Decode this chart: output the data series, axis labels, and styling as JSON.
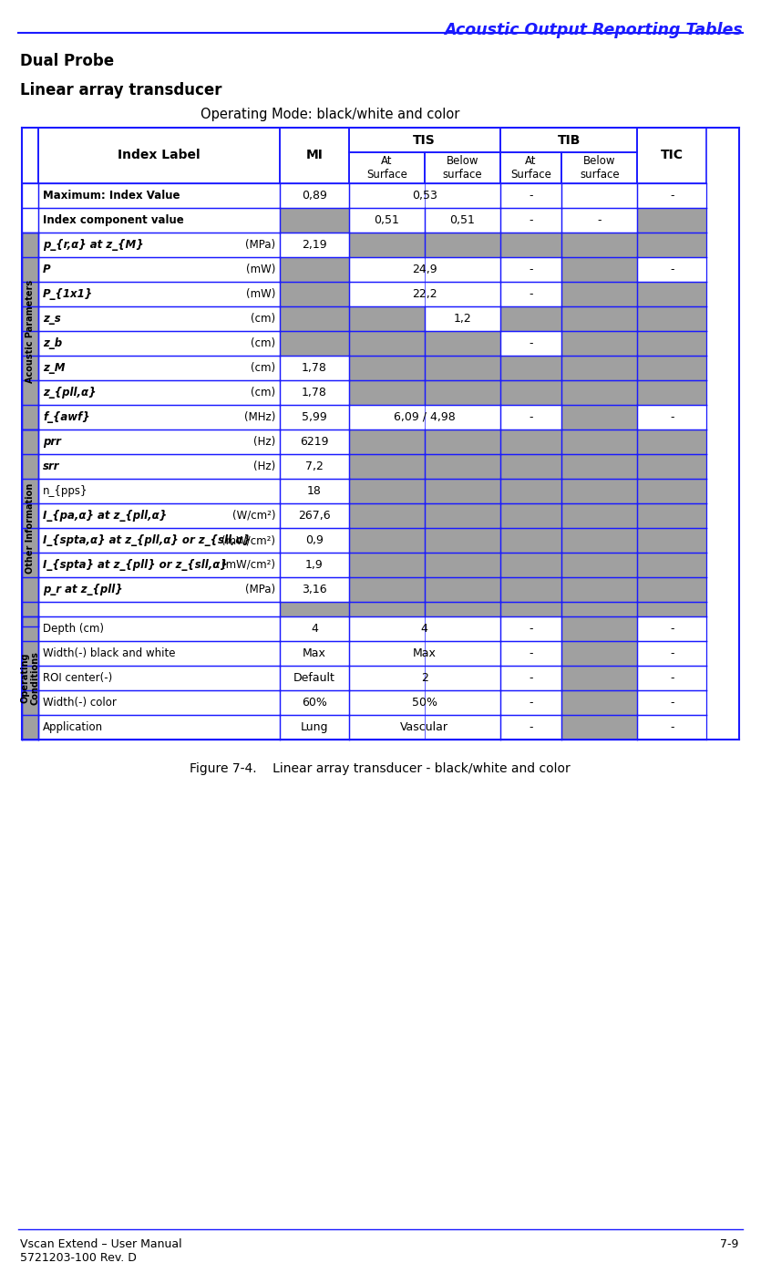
{
  "page_header": "Acoustic Output Reporting Tables",
  "section_title1": "Dual Probe",
  "section_title2": "Linear array transducer",
  "operating_mode": "Operating Mode: black/white and color",
  "figure_caption": "Figure 7-4.    Linear array transducer - black/white and color",
  "footer_left": "Vscan Extend – User Manual\n5721203-100 Rev. D",
  "footer_right": "7-9",
  "gray_color": "#a0a0a0",
  "blue_border": "#1a1aff",
  "rows": [
    {
      "label": "Maximum: Index Value",
      "unit": "",
      "section": "",
      "mi": "0,89",
      "tis_at": "0,53",
      "tis_below": "",
      "tib_at": "-",
      "tib_below": "",
      "tic": "-",
      "mi_gray": false,
      "tis_at_gray": false,
      "tis_below_gray": false,
      "tib_at_gray": false,
      "tib_below_gray": false,
      "tic_gray": false,
      "merged_tis": true,
      "merged_tib": false,
      "label_bold": true
    },
    {
      "label": "Index component value",
      "unit": "",
      "section": "",
      "mi": "",
      "tis_at": "0,51",
      "tis_below": "0,51",
      "tib_at": "-",
      "tib_below": "-",
      "tic": "",
      "mi_gray": true,
      "tis_at_gray": false,
      "tis_below_gray": false,
      "tib_at_gray": false,
      "tib_below_gray": false,
      "tic_gray": true,
      "merged_tis": false,
      "merged_tib": false,
      "label_bold": true
    },
    {
      "label": "p_{r,α} at z_{M}",
      "unit": "(MPa)",
      "section": "Acoustic Parameters",
      "mi": "2,19",
      "tis_at": "",
      "tis_below": "",
      "tib_at": "",
      "tib_below": "",
      "tic": "",
      "mi_gray": false,
      "tis_at_gray": true,
      "tis_below_gray": true,
      "tib_at_gray": true,
      "tib_below_gray": true,
      "tic_gray": true,
      "merged_tis": false,
      "merged_tib": false,
      "label_bold": false
    },
    {
      "label": "P",
      "unit": "(mW)",
      "section": "",
      "mi": "",
      "tis_at": "24,9",
      "tis_below": "",
      "tib_at": "-",
      "tib_below": "",
      "tic": "-",
      "mi_gray": true,
      "tis_at_gray": false,
      "tis_below_gray": false,
      "tib_at_gray": false,
      "tib_below_gray": true,
      "tic_gray": false,
      "merged_tis": true,
      "merged_tib": false,
      "label_bold": false
    },
    {
      "label": "P_{1x1}",
      "unit": "(mW)",
      "section": "",
      "mi": "",
      "tis_at": "22,2",
      "tis_below": "",
      "tib_at": "-",
      "tib_below": "",
      "tic": "",
      "mi_gray": true,
      "tis_at_gray": false,
      "tis_below_gray": false,
      "tib_at_gray": false,
      "tib_below_gray": true,
      "tic_gray": true,
      "merged_tis": true,
      "merged_tib": false,
      "label_bold": false
    },
    {
      "label": "z_s",
      "unit": "(cm)",
      "section": "",
      "mi": "",
      "tis_at": "",
      "tis_below": "1,2",
      "tib_at": "",
      "tib_below": "",
      "tic": "",
      "mi_gray": true,
      "tis_at_gray": true,
      "tis_below_gray": false,
      "tib_at_gray": true,
      "tib_below_gray": true,
      "tic_gray": true,
      "merged_tis": false,
      "merged_tib": false,
      "label_bold": false
    },
    {
      "label": "z_b",
      "unit": "(cm)",
      "section": "",
      "mi": "",
      "tis_at": "",
      "tis_below": "",
      "tib_at": "-",
      "tib_below": "",
      "tic": "",
      "mi_gray": true,
      "tis_at_gray": true,
      "tis_below_gray": true,
      "tib_at_gray": false,
      "tib_below_gray": true,
      "tic_gray": true,
      "merged_tis": false,
      "merged_tib": false,
      "label_bold": false
    },
    {
      "label": "z_M",
      "unit": "(cm)",
      "section": "",
      "mi": "1,78",
      "tis_at": "",
      "tis_below": "",
      "tib_at": "",
      "tib_below": "",
      "tic": "",
      "mi_gray": false,
      "tis_at_gray": true,
      "tis_below_gray": true,
      "tib_at_gray": true,
      "tib_below_gray": true,
      "tic_gray": true,
      "merged_tis": false,
      "merged_tib": false,
      "label_bold": false
    },
    {
      "label": "z_{pll,α}",
      "unit": "(cm)",
      "section": "",
      "mi": "1,78",
      "tis_at": "",
      "tis_below": "",
      "tib_at": "",
      "tib_below": "",
      "tic": "",
      "mi_gray": false,
      "tis_at_gray": true,
      "tis_below_gray": true,
      "tib_at_gray": true,
      "tib_below_gray": true,
      "tic_gray": true,
      "merged_tis": false,
      "merged_tib": false,
      "label_bold": false
    },
    {
      "label": "f_{awf}",
      "unit": "(MHz)",
      "section": "",
      "mi": "5,99",
      "tis_at": "6,09 / 4,98",
      "tis_below": "",
      "tib_at": "-",
      "tib_below": "",
      "tic": "-",
      "mi_gray": false,
      "tis_at_gray": false,
      "tis_below_gray": false,
      "tib_at_gray": false,
      "tib_below_gray": true,
      "tic_gray": false,
      "merged_tis": true,
      "merged_tib": false,
      "label_bold": false
    },
    {
      "label": "prr",
      "unit": "(Hz)",
      "section": "Other Information",
      "mi": "6219",
      "tis_at": "",
      "tis_below": "",
      "tib_at": "",
      "tib_below": "",
      "tic": "",
      "mi_gray": false,
      "tis_at_gray": true,
      "tis_below_gray": true,
      "tib_at_gray": true,
      "tib_below_gray": true,
      "tic_gray": true,
      "merged_tis": false,
      "merged_tib": false,
      "label_bold": false
    },
    {
      "label": "srr",
      "unit": "(Hz)",
      "section": "",
      "mi": "7,2",
      "tis_at": "",
      "tis_below": "",
      "tib_at": "",
      "tib_below": "",
      "tic": "",
      "mi_gray": false,
      "tis_at_gray": true,
      "tis_below_gray": true,
      "tib_at_gray": true,
      "tib_below_gray": true,
      "tic_gray": true,
      "merged_tis": false,
      "merged_tib": false,
      "label_bold": false
    },
    {
      "label": "n_{pps}",
      "unit": "",
      "section": "",
      "mi": "18",
      "tis_at": "",
      "tis_below": "",
      "tib_at": "",
      "tib_below": "",
      "tic": "",
      "mi_gray": false,
      "tis_at_gray": true,
      "tis_below_gray": true,
      "tib_at_gray": true,
      "tib_below_gray": true,
      "tic_gray": true,
      "merged_tis": false,
      "merged_tib": false,
      "label_bold": false
    },
    {
      "label": "I_{pa,α} at z_{pll,α}",
      "unit": "(W/cm²)",
      "section": "",
      "mi": "267,6",
      "tis_at": "",
      "tis_below": "",
      "tib_at": "",
      "tib_below": "",
      "tic": "",
      "mi_gray": false,
      "tis_at_gray": true,
      "tis_below_gray": true,
      "tib_at_gray": true,
      "tib_below_gray": true,
      "tic_gray": true,
      "merged_tis": false,
      "merged_tib": false,
      "label_bold": false
    },
    {
      "label": "I_{spta,α} at z_{pll,α} or z_{sll,α}",
      "unit": "(mW/cm²)",
      "section": "",
      "mi": "0,9",
      "tis_at": "",
      "tis_below": "",
      "tib_at": "",
      "tib_below": "",
      "tic": "",
      "mi_gray": false,
      "tis_at_gray": true,
      "tis_below_gray": true,
      "tib_at_gray": true,
      "tib_below_gray": true,
      "tic_gray": true,
      "merged_tis": false,
      "merged_tib": false,
      "label_bold": false
    },
    {
      "label": "I_{spta} at z_{pll} or z_{sll,α}",
      "unit": "(mW/cm²)",
      "section": "",
      "mi": "1,9",
      "tis_at": "",
      "tis_below": "",
      "tib_at": "",
      "tib_below": "",
      "tic": "",
      "mi_gray": false,
      "tis_at_gray": true,
      "tis_below_gray": true,
      "tib_at_gray": true,
      "tib_below_gray": true,
      "tic_gray": true,
      "merged_tis": false,
      "merged_tib": false,
      "label_bold": false
    },
    {
      "label": "p_r at z_{pll}",
      "unit": "(MPa)",
      "section": "",
      "mi": "3,16",
      "tis_at": "",
      "tis_below": "",
      "tib_at": "",
      "tib_below": "",
      "tic": "",
      "mi_gray": false,
      "tis_at_gray": true,
      "tis_below_gray": true,
      "tib_at_gray": true,
      "tib_below_gray": true,
      "tic_gray": true,
      "merged_tis": false,
      "merged_tib": false,
      "label_bold": false
    },
    {
      "label": "",
      "unit": "",
      "section": "",
      "mi": "",
      "tis_at": "",
      "tis_below": "",
      "tib_at": "",
      "tib_below": "",
      "tic": "",
      "mi_gray": true,
      "tis_at_gray": true,
      "tis_below_gray": true,
      "tib_at_gray": true,
      "tib_below_gray": true,
      "tic_gray": true,
      "merged_tis": false,
      "merged_tib": false,
      "label_bold": false,
      "empty_row": true
    },
    {
      "label": "Depth (cm)",
      "unit": "",
      "section": "Operating\nConditions",
      "mi": "4",
      "tis_at": "4",
      "tis_below": "",
      "tib_at": "-",
      "tib_below": "",
      "tic": "-",
      "mi_gray": false,
      "tis_at_gray": false,
      "tis_below_gray": false,
      "tib_at_gray": false,
      "tib_below_gray": true,
      "tic_gray": false,
      "merged_tis": true,
      "merged_tib": false,
      "label_bold": false
    },
    {
      "label": "Width(-) black and white",
      "unit": "",
      "section": "",
      "mi": "Max",
      "tis_at": "Max",
      "tis_below": "",
      "tib_at": "-",
      "tib_below": "",
      "tic": "-",
      "mi_gray": false,
      "tis_at_gray": false,
      "tis_below_gray": false,
      "tib_at_gray": false,
      "tib_below_gray": true,
      "tic_gray": false,
      "merged_tis": true,
      "merged_tib": false,
      "label_bold": false
    },
    {
      "label": "ROI center(-)",
      "unit": "",
      "section": "",
      "mi": "Default",
      "tis_at": "2",
      "tis_below": "",
      "tib_at": "-",
      "tib_below": "",
      "tic": "-",
      "mi_gray": false,
      "tis_at_gray": false,
      "tis_below_gray": false,
      "tib_at_gray": false,
      "tib_below_gray": true,
      "tic_gray": false,
      "merged_tis": true,
      "merged_tib": false,
      "label_bold": false
    },
    {
      "label": "Width(-) color",
      "unit": "",
      "section": "",
      "mi": "60%",
      "tis_at": "50%",
      "tis_below": "",
      "tib_at": "-",
      "tib_below": "",
      "tic": "-",
      "mi_gray": false,
      "tis_at_gray": false,
      "tis_below_gray": false,
      "tib_at_gray": false,
      "tib_below_gray": true,
      "tic_gray": false,
      "merged_tis": true,
      "merged_tib": false,
      "label_bold": false
    },
    {
      "label": "Application",
      "unit": "",
      "section": "",
      "mi": "Lung",
      "tis_at": "Vascular",
      "tis_below": "",
      "tib_at": "-",
      "tib_below": "",
      "tic": "-",
      "mi_gray": false,
      "tis_at_gray": false,
      "tis_below_gray": false,
      "tib_at_gray": false,
      "tib_below_gray": true,
      "tic_gray": false,
      "merged_tis": true,
      "merged_tib": false,
      "label_bold": false
    }
  ],
  "section_spans": {
    "Acoustic Parameters": [
      2,
      9
    ],
    "Other Information": [
      10,
      17
    ],
    "Operating\nConditions": [
      18,
      22
    ]
  }
}
